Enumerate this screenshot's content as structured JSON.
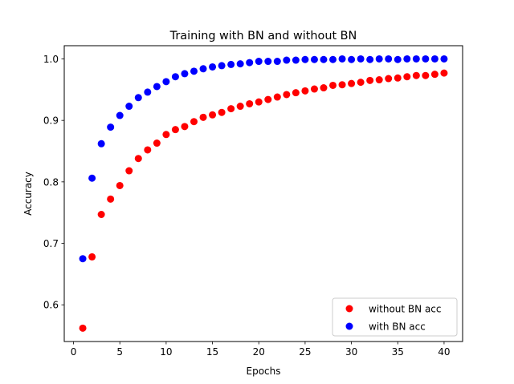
{
  "chart_data": {
    "type": "scatter",
    "title": "Training with BN and without BN",
    "xlabel": "Epochs",
    "ylabel": "Accuracy",
    "xlim": [
      -1,
      42
    ],
    "ylim": [
      0.5403,
      1.0215
    ],
    "xticks": [
      0,
      5,
      10,
      15,
      20,
      25,
      30,
      35,
      40
    ],
    "xtick_labels": [
      "0",
      "5",
      "10",
      "15",
      "20",
      "25",
      "30",
      "35",
      "40"
    ],
    "yticks": [
      0.6,
      0.7,
      0.8,
      0.9,
      1.0
    ],
    "ytick_labels": [
      "0.6",
      "0.7",
      "0.8",
      "0.9",
      "1.0"
    ],
    "grid": false,
    "legend_position": "lower-right",
    "x": [
      1,
      2,
      3,
      4,
      5,
      6,
      7,
      8,
      9,
      10,
      11,
      12,
      13,
      14,
      15,
      16,
      17,
      18,
      19,
      20,
      21,
      22,
      23,
      24,
      25,
      26,
      27,
      28,
      29,
      30,
      31,
      32,
      33,
      34,
      35,
      36,
      37,
      38,
      39,
      40
    ],
    "series": [
      {
        "name": "without BN acc",
        "color": "#ff0000",
        "values": [
          0.562,
          0.678,
          0.747,
          0.772,
          0.794,
          0.818,
          0.838,
          0.852,
          0.863,
          0.877,
          0.885,
          0.89,
          0.898,
          0.905,
          0.909,
          0.913,
          0.919,
          0.923,
          0.927,
          0.93,
          0.934,
          0.938,
          0.942,
          0.945,
          0.948,
          0.951,
          0.953,
          0.957,
          0.958,
          0.96,
          0.962,
          0.965,
          0.966,
          0.968,
          0.969,
          0.971,
          0.973,
          0.973,
          0.975,
          0.977
        ]
      },
      {
        "name": "with BN acc",
        "color": "#0000ff",
        "values": [
          0.675,
          0.806,
          0.862,
          0.889,
          0.908,
          0.923,
          0.937,
          0.946,
          0.955,
          0.963,
          0.971,
          0.976,
          0.98,
          0.984,
          0.987,
          0.989,
          0.991,
          0.992,
          0.994,
          0.996,
          0.996,
          0.996,
          0.998,
          0.998,
          0.999,
          0.999,
          0.999,
          0.999,
          1.0,
          0.999,
          1.0,
          0.999,
          1.0,
          1.0,
          0.999,
          1.0,
          1.0,
          1.0,
          1.0,
          1.0
        ]
      }
    ]
  }
}
